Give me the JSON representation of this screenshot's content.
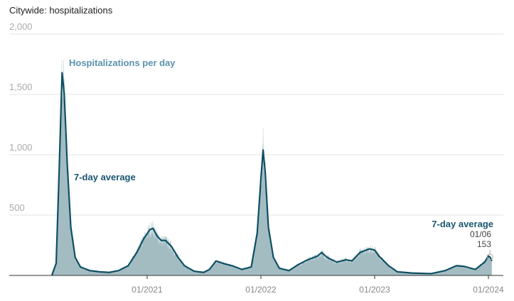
{
  "title": "Citywide: hospitalizations",
  "chart_data": {
    "type": "area",
    "title": "Citywide: hospitalizations",
    "ylim": [
      0,
      2000
    ],
    "yticks": [
      500,
      1000,
      1500,
      2000
    ],
    "ytick_labels": [
      "500",
      "1,000",
      "1,500",
      "2,000"
    ],
    "xticks": [
      {
        "date": "2021-01-01",
        "label": "01/2021"
      },
      {
        "date": "2022-01-01",
        "label": "01/2022"
      },
      {
        "date": "2023-01-01",
        "label": "01/2023"
      },
      {
        "date": "2024-01-01",
        "label": "01/2024"
      }
    ],
    "grid": true,
    "colors": {
      "daily_fill": "#a3bcc2",
      "average_line": "#0e4f63",
      "daily_label": "#5b93ad",
      "average_label": "#1a5570"
    },
    "series": [
      {
        "name": "Hospitalizations per day",
        "kind": "daily-bars"
      },
      {
        "name": "7-day average",
        "kind": "line",
        "points": [
          [
            "2020-03-01",
            0
          ],
          [
            "2020-03-15",
            100
          ],
          [
            "2020-03-25",
            900
          ],
          [
            "2020-04-03",
            1680
          ],
          [
            "2020-04-10",
            1500
          ],
          [
            "2020-04-20",
            900
          ],
          [
            "2020-05-01",
            400
          ],
          [
            "2020-05-15",
            150
          ],
          [
            "2020-06-01",
            70
          ],
          [
            "2020-07-01",
            40
          ],
          [
            "2020-08-01",
            30
          ],
          [
            "2020-09-01",
            25
          ],
          [
            "2020-10-01",
            40
          ],
          [
            "2020-11-01",
            80
          ],
          [
            "2020-12-01",
            200
          ],
          [
            "2020-12-20",
            300
          ],
          [
            "2021-01-10",
            380
          ],
          [
            "2021-01-20",
            390
          ],
          [
            "2021-02-01",
            330
          ],
          [
            "2021-02-15",
            290
          ],
          [
            "2021-03-01",
            290
          ],
          [
            "2021-03-20",
            240
          ],
          [
            "2021-04-10",
            150
          ],
          [
            "2021-05-01",
            80
          ],
          [
            "2021-06-01",
            35
          ],
          [
            "2021-07-01",
            25
          ],
          [
            "2021-07-20",
            50
          ],
          [
            "2021-08-10",
            120
          ],
          [
            "2021-09-01",
            100
          ],
          [
            "2021-10-01",
            80
          ],
          [
            "2021-11-01",
            50
          ],
          [
            "2021-12-01",
            70
          ],
          [
            "2021-12-20",
            350
          ],
          [
            "2022-01-01",
            800
          ],
          [
            "2022-01-08",
            1040
          ],
          [
            "2022-01-15",
            850
          ],
          [
            "2022-01-25",
            400
          ],
          [
            "2022-02-10",
            150
          ],
          [
            "2022-03-01",
            60
          ],
          [
            "2022-04-01",
            40
          ],
          [
            "2022-05-01",
            90
          ],
          [
            "2022-06-01",
            130
          ],
          [
            "2022-07-01",
            160
          ],
          [
            "2022-07-15",
            190
          ],
          [
            "2022-08-01",
            150
          ],
          [
            "2022-09-01",
            110
          ],
          [
            "2022-10-01",
            130
          ],
          [
            "2022-10-20",
            120
          ],
          [
            "2022-11-15",
            190
          ],
          [
            "2022-12-15",
            220
          ],
          [
            "2023-01-01",
            210
          ],
          [
            "2023-01-15",
            160
          ],
          [
            "2023-02-15",
            80
          ],
          [
            "2023-03-15",
            30
          ],
          [
            "2023-05-01",
            20
          ],
          [
            "2023-07-01",
            15
          ],
          [
            "2023-08-15",
            40
          ],
          [
            "2023-09-20",
            80
          ],
          [
            "2023-10-15",
            75
          ],
          [
            "2023-11-20",
            50
          ],
          [
            "2023-12-20",
            110
          ],
          [
            "2024-01-01",
            160
          ],
          [
            "2024-01-06",
            153
          ],
          [
            "2024-01-12",
            120
          ]
        ]
      }
    ],
    "annotations": {
      "daily_label": "Hospitalizations per day",
      "average_label": "7-day average",
      "latest_label": "7-day average",
      "latest_date": "01/06",
      "latest_value": "153"
    }
  }
}
